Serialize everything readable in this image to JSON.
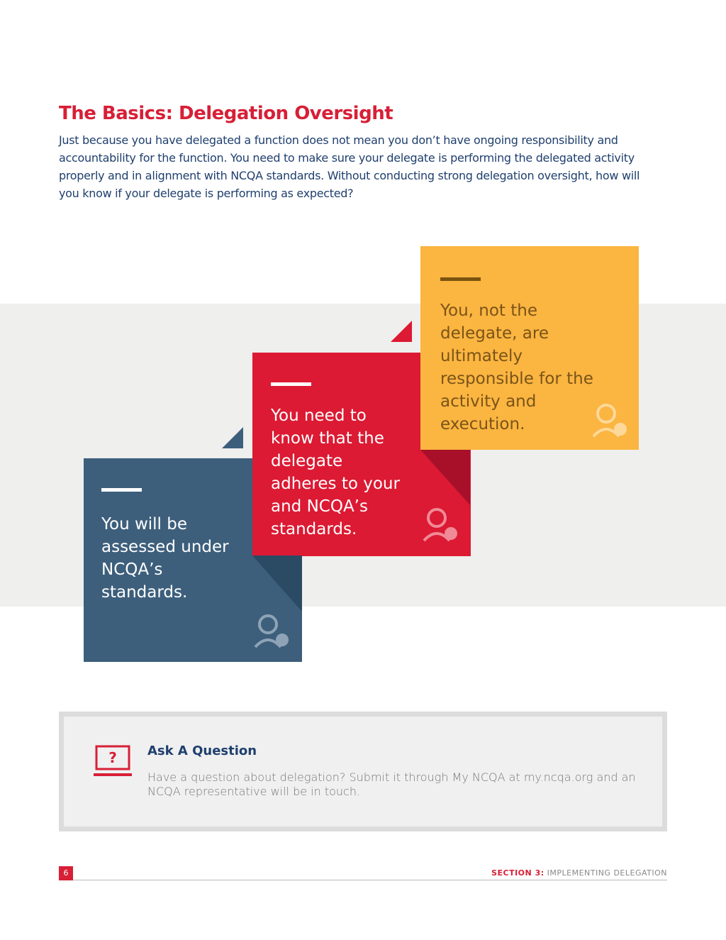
{
  "header": {
    "title": "The Basics: Delegation Oversight"
  },
  "intro": "Just because you have delegated a function does not mean you don’t have ongoing responsibility and accountability for the function. You need to make sure your delegate is performing the delegated activity properly and in alignment with NCQA standards. Without conducting strong delegation oversight, how will you know if your delegate is performing as expected?",
  "cards": [
    {
      "text": "You will be assessed under NCQA’s standards."
    },
    {
      "text": "You need to know that the delegate adheres to your and NCQA’s standards."
    },
    {
      "text": "You, not the delegate, are ultimately responsible for the activity and execution."
    }
  ],
  "question": {
    "icon": "?",
    "title": "Ask A Question",
    "text": "Have a question about delegation? Submit it through My NCQA at my.ncqa.org and an NCQA representative will be in touch."
  },
  "footer": {
    "page": "6",
    "section_label": "SECTION 3:",
    "section_name": "IMPLEMENTING DELEGATION"
  }
}
